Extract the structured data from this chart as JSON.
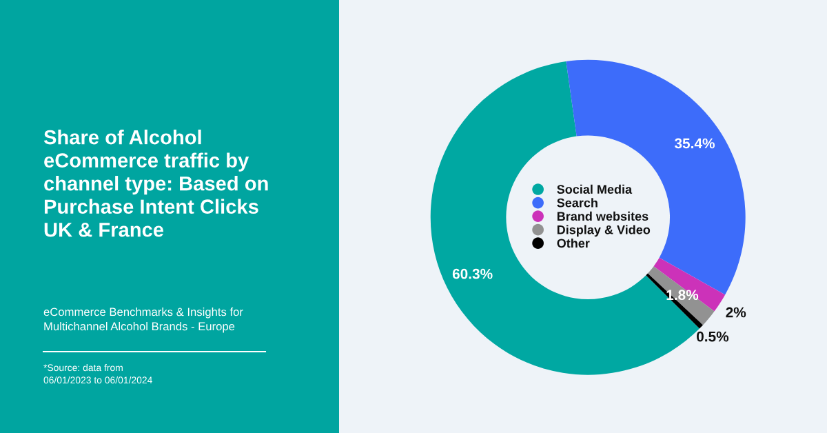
{
  "chart_data": {
    "type": "donut",
    "title": "Share of Alcohol\neCommerce traffic by\nchannel type: Based on\nPurchase Intent Clicks\nUK & France",
    "subtitle": "eCommerce Benchmarks & Insights for\nMultichannel Alcohol Brands - Europe",
    "annotations": [
      "*Source: data from\n06/01/2023 to 06/01/2024"
    ],
    "categories": [
      "Social Media",
      "Search",
      "Brand websites",
      "Display & Video",
      "Other"
    ],
    "values": [
      60.3,
      35.4,
      2,
      1.8,
      0.5
    ],
    "colors": [
      "#00a8a2",
      "#3d6cfa",
      "#cc32b9",
      "#929292",
      "#000000"
    ],
    "value_labels": [
      "60.3%",
      "35.4%",
      "2%",
      "1.8%",
      "0.5%"
    ],
    "legend": "center"
  }
}
